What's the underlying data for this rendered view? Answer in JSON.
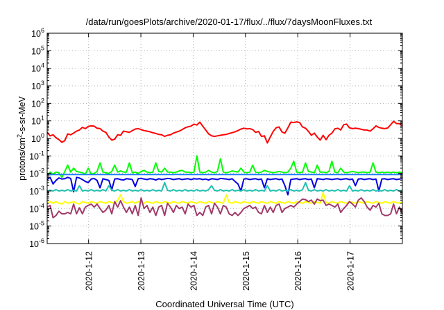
{
  "chart_data": {
    "type": "line",
    "title": "/data/run/goesPlots/archive/2020-01-17/flux/../flux/7daysMoonFluxes.txt",
    "xlabel": "Coordinated Universal Time (UTC)",
    "ylabel": "protons/cm2-s-sr-MeV",
    "ylabel_base": "protons/cm",
    "ylabel_sup": "2",
    "ylabel_rest": "-s-sr-MeV",
    "y_scale": "log",
    "ylim": [
      1e-06,
      1000000.0
    ],
    "y_tick_exponents": [
      -6,
      -5,
      -4,
      -3,
      -2,
      -1,
      0,
      1,
      2,
      3,
      4,
      5,
      6
    ],
    "y_tick_base": "10",
    "xlim": [
      "2020-01-11T05:00",
      "2020-01-18T00:00"
    ],
    "x_ticks": [
      "2020-1-12",
      "2020-1-13",
      "2020-1-14",
      "2020-1-15",
      "2020-1-16",
      "2020-1-17"
    ],
    "grid": true,
    "legend": "none",
    "series": [
      {
        "color": "#ff0000",
        "values": [
          2.2,
          1.4,
          1.6,
          1.1,
          0.85,
          0.6,
          0.75,
          1.8,
          1.6,
          2.0,
          2.6,
          3.0,
          4.3,
          3.6,
          4.8,
          5.2,
          5.0,
          3.8,
          3.6,
          2.6,
          2.2,
          1.2,
          0.8,
          0.9,
          1.6,
          1.5,
          2.6,
          2.4,
          2.2,
          2.8,
          3.4,
          3.6,
          3.2,
          2.8,
          2.6,
          2.4,
          2.1,
          1.9,
          1.7,
          1.6,
          1.3,
          1.5,
          1.6,
          2.0,
          2.3,
          2.6,
          3.2,
          4.0,
          4.6,
          5.0,
          6.5,
          5.8,
          8.5,
          5.0,
          3.0,
          1.8,
          1.4,
          1.3,
          1.4,
          1.5,
          1.6,
          1.7,
          1.9,
          2.1,
          2.4,
          2.8,
          3.4,
          3.8,
          3.5,
          3.6,
          3.2,
          2.2,
          2.5,
          1.3,
          1.4,
          0.55,
          1.2,
          2.5,
          4.0,
          4.5,
          2.3,
          2.0,
          4.0,
          8.5,
          8.0,
          8.8,
          8.0,
          4.5,
          3.8,
          2.5,
          1.5,
          2.0,
          1.2,
          0.8,
          1.5,
          0.85,
          1.5,
          2.0,
          3.5,
          3.8,
          3.0,
          6.0,
          6.5,
          4.0,
          3.6,
          3.8,
          3.6,
          3.3,
          3.0,
          3.0,
          2.6,
          3.5,
          5.2,
          4.2,
          3.8,
          3.6,
          3.9,
          6.0,
          9.5,
          7.0,
          7.0,
          5.0
        ]
      },
      {
        "color": "#00ff00",
        "values": [
          0.008,
          0.012,
          0.009,
          0.012,
          0.011,
          0.006,
          0.013,
          0.03,
          0.012,
          0.02,
          0.013,
          0.012,
          0.011,
          0.009,
          0.02,
          0.009,
          0.01,
          0.013,
          0.04,
          0.012,
          0.011,
          0.01,
          0.013,
          0.03,
          0.012,
          0.014,
          0.012,
          0.012,
          0.04,
          0.011,
          0.012,
          0.01,
          0.013,
          0.015,
          0.012,
          0.011,
          0.012,
          0.04,
          0.013,
          0.012,
          0.02,
          0.012,
          0.012,
          0.011,
          0.012,
          0.014,
          0.015,
          0.012,
          0.012,
          0.011,
          0.012,
          0.1,
          0.012,
          0.011,
          0.012,
          0.015,
          0.012,
          0.011,
          0.013,
          0.07,
          0.012,
          0.011,
          0.012,
          0.014,
          0.013,
          0.012,
          0.02,
          0.012,
          0.011,
          0.012,
          0.03,
          0.012,
          0.011,
          0.012,
          0.015,
          0.013,
          0.012,
          0.011,
          0.012,
          0.013,
          0.012,
          0.011,
          0.012,
          0.02,
          0.05,
          0.012,
          0.011,
          0.012,
          0.04,
          0.013,
          0.012,
          0.011,
          0.03,
          0.012,
          0.012,
          0.011,
          0.013,
          0.05,
          0.012,
          0.011,
          0.02,
          0.012,
          0.011,
          0.012,
          0.013,
          0.012,
          0.011,
          0.012,
          0.012,
          0.011,
          0.012,
          0.04,
          0.012,
          0.011,
          0.012,
          0.011,
          0.012,
          0.011,
          0.012,
          0.011,
          0.012,
          0.011
        ]
      },
      {
        "color": "#1f7fff",
        "values": [
          0.0085,
          0.0085,
          0.0088,
          0.0086,
          0.0087,
          0.0088,
          0.0086,
          0.0087,
          0.0086,
          0.0088,
          0.0087,
          0.0086,
          0.0087,
          0.0088,
          0.0086,
          0.0087,
          0.0086,
          0.0087,
          0.0088,
          0.0087,
          0.0086,
          0.0087,
          0.0088,
          0.0086,
          0.0087,
          0.0088,
          0.0087,
          0.0086,
          0.0087,
          0.0088,
          0.0086,
          0.0087,
          0.0086,
          0.0087,
          0.0088,
          0.0087,
          0.0086,
          0.0087,
          0.0088,
          0.0087,
          0.0086,
          0.0087,
          0.0086,
          0.0087,
          0.0088,
          0.0087,
          0.0086,
          0.0087,
          0.0088,
          0.0086,
          0.0087,
          0.0086,
          0.0087,
          0.0088,
          0.0087,
          0.0086,
          0.0087,
          0.0088,
          0.0087,
          0.0086,
          0.0087,
          0.0086,
          0.0087,
          0.0088,
          0.0087,
          0.0086,
          0.0087,
          0.0088,
          0.0087,
          0.0086,
          0.0087,
          0.0086,
          0.0087,
          0.0088,
          0.0087,
          0.0086,
          0.0087,
          0.0088,
          0.0087,
          0.0086,
          0.0087,
          0.0086,
          0.0087,
          0.0088,
          0.0087,
          0.0086,
          0.0087,
          0.0088,
          0.0087,
          0.0086,
          0.0087,
          0.0086,
          0.0087,
          0.0088,
          0.0087,
          0.0086,
          0.0087,
          0.0088,
          0.0087,
          0.0086,
          0.0087,
          0.0086,
          0.0087,
          0.0088,
          0.0087,
          0.0086,
          0.0087,
          0.0088,
          0.0087,
          0.0086,
          0.0087,
          0.0086,
          0.0087,
          0.0088,
          0.0087,
          0.0086,
          0.0087,
          0.0088,
          0.0087,
          0.0086,
          0.0087,
          0.0087
        ]
      },
      {
        "color": "#0000e0",
        "values": [
          0.0045,
          0.006,
          0.0025,
          0.004,
          0.0055,
          0.0048,
          0.005,
          0.006,
          0.0052,
          0.0009,
          0.006,
          0.0055,
          0.0045,
          0.0035,
          0.003,
          0.0048,
          0.0052,
          0.004,
          0.0015,
          0.005,
          0.0045,
          0.004,
          0.0012,
          0.0048,
          0.005,
          0.0045,
          0.0042,
          0.005,
          0.0048,
          0.0045,
          0.0018,
          0.005,
          0.0052,
          0.0048,
          0.0045,
          0.005,
          0.0048,
          0.0042,
          0.005,
          0.0045,
          0.0048,
          0.0052,
          0.005,
          0.0045,
          0.0048,
          0.005,
          0.0045,
          0.0048,
          0.005,
          0.0045,
          0.005,
          0.0048,
          0.005,
          0.0045,
          0.0048,
          0.0042,
          0.005,
          0.0048,
          0.0045,
          0.0052,
          0.005,
          0.0048,
          0.0045,
          0.005,
          0.0035,
          0.0025,
          0.001,
          0.0048,
          0.005,
          0.0045,
          0.0048,
          0.005,
          0.0045,
          0.0048,
          0.0015,
          0.005,
          0.0045,
          0.0048,
          0.005,
          0.0045,
          0.0048,
          0.002,
          0.0006,
          0.0045,
          0.0048,
          0.005,
          0.0045,
          0.0048,
          0.005,
          0.0045,
          0.0048,
          0.0015,
          0.005,
          0.0048,
          0.0045,
          0.005,
          0.0048,
          0.0045,
          0.0048,
          0.005,
          0.0045,
          0.0048,
          0.005,
          0.0045,
          0.0048,
          0.002,
          0.0048,
          0.005,
          0.0045,
          0.0048,
          0.005,
          0.0045,
          0.0048,
          0.001,
          0.0048,
          0.005,
          0.0045,
          0.0048,
          0.005,
          0.0045,
          0.0048,
          0.005
        ]
      },
      {
        "color": "#20c0b0",
        "values": [
          0.001,
          0.0011,
          0.001,
          0.0012,
          0.001,
          0.0011,
          0.001,
          0.0012,
          0.001,
          0.0011,
          0.001,
          0.002,
          0.001,
          0.0011,
          0.001,
          0.0012,
          0.001,
          0.0011,
          0.001,
          0.0012,
          0.001,
          0.002,
          0.0011,
          0.001,
          0.0012,
          0.001,
          0.0011,
          0.001,
          0.0012,
          0.001,
          0.0011,
          0.001,
          0.0012,
          0.001,
          0.0011,
          0.001,
          0.0012,
          0.001,
          0.0011,
          0.001,
          0.003,
          0.0011,
          0.001,
          0.0012,
          0.001,
          0.0011,
          0.001,
          0.0012,
          0.001,
          0.0011,
          0.001,
          0.0012,
          0.001,
          0.0011,
          0.001,
          0.0012,
          0.002,
          0.0011,
          0.001,
          0.0012,
          0.001,
          0.0011,
          0.001,
          0.0012,
          0.001,
          0.0011,
          0.001,
          0.0012,
          0.001,
          0.0011,
          0.001,
          0.0012,
          0.001,
          0.0011,
          0.001,
          0.002,
          0.001,
          0.0011,
          0.001,
          0.0012,
          0.001,
          0.0011,
          0.001,
          0.0012,
          0.001,
          0.0011,
          0.001,
          0.0012,
          0.003,
          0.0011,
          0.001,
          0.0012,
          0.001,
          0.0011,
          0.001,
          0.0012,
          0.001,
          0.0011,
          0.001,
          0.0012,
          0.001,
          0.0011,
          0.001,
          0.002,
          0.001,
          0.0011,
          0.001,
          0.0012,
          0.001,
          0.0011,
          0.001,
          0.0012,
          0.001,
          0.0011,
          0.001,
          0.0012,
          0.001,
          0.0011,
          0.001,
          0.0012,
          0.001,
          0.0011
        ]
      },
      {
        "color": "#ffff00",
        "values": [
          0.0002,
          0.00025,
          0.0002,
          0.00025,
          0.0002,
          0.00018,
          0.00025,
          0.0002,
          0.00022,
          0.00025,
          0.0002,
          0.00018,
          0.00025,
          0.00022,
          0.0002,
          0.00025,
          0.00022,
          0.0002,
          0.00025,
          0.00022,
          0.0002,
          0.00025,
          0.00022,
          0.0002,
          0.0003,
          0.0006,
          0.00025,
          0.0002,
          0.00022,
          0.00025,
          0.0002,
          0.00025,
          0.00022,
          0.0002,
          0.00025,
          0.00022,
          0.0002,
          0.00025,
          0.00022,
          0.0002,
          0.00025,
          0.00022,
          0.0002,
          0.00025,
          0.00022,
          0.0002,
          0.00025,
          0.00022,
          0.0002,
          0.00025,
          0.00022,
          0.0002,
          0.00025,
          0.00022,
          0.0002,
          0.00025,
          0.00022,
          0.0002,
          0.00025,
          0.00022,
          0.0002,
          0.0006,
          0.00022,
          0.0002,
          0.00025,
          0.00022,
          0.0002,
          0.00025,
          0.00022,
          0.0002,
          0.00025,
          0.00022,
          0.0002,
          0.00025,
          0.00022,
          0.0002,
          0.00025,
          0.00022,
          0.0002,
          0.00025,
          0.00022,
          0.0002,
          0.00025,
          0.00022,
          0.0002,
          0.00025,
          0.00022,
          0.0002,
          0.00025,
          0.00022,
          0.0002,
          0.00025,
          0.00022,
          0.0002,
          0.0008,
          0.00022,
          0.0002,
          0.00025,
          0.00022,
          0.0002,
          0.00025,
          0.00022,
          0.0002,
          0.00025,
          0.00022,
          0.0002,
          0.00025,
          0.00022,
          0.0002,
          0.00025,
          0.00022,
          0.0002,
          0.00025,
          0.00022,
          0.0002,
          0.00025,
          0.00022,
          0.0002,
          0.00025,
          0.00022,
          0.0002,
          0.00025
        ]
      },
      {
        "color": "#a03a6a",
        "values": [
          0.00012,
          0.00015,
          3e-05,
          4e-05,
          7e-05,
          5e-05,
          5e-05,
          6e-05,
          5e-05,
          0.00018,
          5e-05,
          0.00011,
          5e-05,
          0.00012,
          0.00015,
          0.00018,
          0.00012,
          0.00018,
          0.0001,
          6e-05,
          8e-05,
          0.00015,
          5e-05,
          0.00025,
          0.00012,
          0.00028,
          0.00012,
          6e-05,
          0.00012,
          5e-05,
          0.00015,
          4e-05,
          0.0004,
          0.0001,
          0.00015,
          6e-05,
          0.00012,
          4e-05,
          0.00012,
          0.00015,
          4e-05,
          0.0002,
          0.00012,
          6e-05,
          0.00015,
          0.0001,
          0.00012,
          5e-05,
          0.00018,
          0.00012,
          0.00015,
          4e-05,
          6e-05,
          4e-05,
          0.00012,
          0.00015,
          5e-05,
          0.0002,
          0.00012,
          5e-05,
          0.00015,
          0.00012,
          5e-05,
          4e-05,
          6e-05,
          4e-05,
          6e-05,
          0.0001,
          0.00012,
          0.00015,
          0.0001,
          0.00012,
          6e-05,
          5e-05,
          0.00015,
          6e-05,
          0.00012,
          6e-05,
          0.00015,
          0.00018,
          6e-05,
          0.0001,
          0.00012,
          0.00015,
          0.00012,
          0.00018,
          0.00025,
          0.00035,
          0.00032,
          0.00025,
          0.0003,
          0.00018,
          0.00035,
          0.00028,
          0.0003,
          0.00015,
          0.00018,
          0.00015,
          0.00012,
          0.00018,
          6e-05,
          0.0001,
          0.00015,
          0.00025,
          0.00018,
          0.00012,
          0.0003,
          0.0004,
          0.00025,
          0.00012,
          8e-05,
          0.00015,
          0.00012,
          0.0002,
          5e-05,
          4e-05,
          4e-05,
          5e-05,
          0.00018,
          5e-05,
          0.00012,
          5e-05
        ]
      }
    ]
  }
}
